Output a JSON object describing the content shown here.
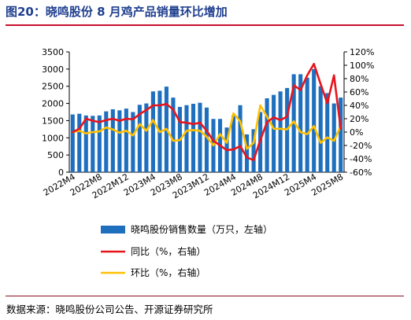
{
  "figure_title": "图20：晓鸣股份 8 月鸡产品销量环比增加",
  "source": "数据来源：晓鸣股份公司公告、开源证券研究所",
  "colors": {
    "bar": "#1f6fbf",
    "yoy": "#e8141c",
    "mom": "#ffc000",
    "title": "#1f3f8f",
    "rule": "#c8102e"
  },
  "chart_data": {
    "type": "bar",
    "title": "",
    "left_axis": {
      "min": 0,
      "max": 3500,
      "step": 500,
      "ticks": [
        "0",
        "500",
        "1000",
        "1500",
        "2000",
        "2500",
        "3000",
        "3500"
      ]
    },
    "right_axis": {
      "min": -60,
      "max": 120,
      "step": 20,
      "ticks": [
        "-60%",
        "-40%",
        "-20%",
        "0%",
        "20%",
        "40%",
        "60%",
        "80%",
        "100%",
        "120%"
      ]
    },
    "x_tick_labels": [
      {
        "index": 0,
        "label": "2022M4"
      },
      {
        "index": 4,
        "label": "2022M8"
      },
      {
        "index": 8,
        "label": "2022M12"
      },
      {
        "index": 12,
        "label": "2023M4"
      },
      {
        "index": 16,
        "label": "2023M8"
      },
      {
        "index": 20,
        "label": "2023M12"
      },
      {
        "index": 24,
        "label": "2024M4"
      },
      {
        "index": 28,
        "label": "2024M8"
      },
      {
        "index": 32,
        "label": "2024M12"
      },
      {
        "index": 36,
        "label": "2025M4"
      },
      {
        "index": 40,
        "label": "2025M8"
      }
    ],
    "categories": [
      "2022M4",
      "2022M5",
      "2022M6",
      "2022M7",
      "2022M8",
      "2022M9",
      "2022M10",
      "2022M11",
      "2022M12",
      "2023M1",
      "2023M2",
      "2023M3",
      "2023M4",
      "2023M5",
      "2023M6",
      "2023M7",
      "2023M8",
      "2023M9",
      "2023M10",
      "2023M11",
      "2023M12",
      "2024M1",
      "2024M2",
      "2024M3",
      "2024M4",
      "2024M5",
      "2024M6",
      "2024M7",
      "2024M8",
      "2024M9",
      "2024M10",
      "2024M11",
      "2024M12",
      "2025M1",
      "2025M2",
      "2025M3",
      "2025M4",
      "2025M5",
      "2025M6",
      "2025M7",
      "2025M8"
    ],
    "legend_position": "bottom",
    "series": [
      {
        "name": "晓鸣股份销售数量（万只，左轴）",
        "type": "bar",
        "axis": "left",
        "values": [
          1680,
          1700,
          1650,
          1640,
          1650,
          1770,
          1830,
          1800,
          1850,
          1750,
          1960,
          2000,
          2350,
          2370,
          2490,
          2170,
          1900,
          1950,
          1990,
          2020,
          1880,
          1550,
          1550,
          1300,
          1650,
          1950,
          1100,
          1250,
          1750,
          2150,
          2250,
          2350,
          2450,
          2850,
          2850,
          2750,
          3000,
          2500,
          2300,
          2000,
          2170
        ]
      },
      {
        "name": "同比（%，右轴）",
        "type": "line",
        "axis": "right",
        "values": [
          0,
          5,
          20,
          17,
          15,
          18,
          20,
          17,
          20,
          19,
          27,
          33,
          40,
          40,
          42,
          34,
          15,
          14,
          12,
          14,
          2,
          -13,
          -20,
          -27,
          -26,
          -21,
          -38,
          -42,
          -12,
          15,
          22,
          18,
          23,
          70,
          63,
          85,
          102,
          72,
          43,
          85,
          5
        ]
      },
      {
        "name": "环比（%，右轴）",
        "type": "line",
        "axis": "right",
        "values": [
          0,
          2,
          -2,
          0,
          1,
          7,
          4,
          -1,
          2,
          -5,
          12,
          2,
          18,
          0,
          5,
          -13,
          -12,
          2,
          3,
          2,
          -7,
          -20,
          -3,
          -16,
          28,
          16,
          -25,
          -16,
          40,
          23,
          5,
          5,
          4,
          16,
          0,
          -3,
          9,
          -16,
          -8,
          -13,
          9
        ]
      }
    ]
  }
}
